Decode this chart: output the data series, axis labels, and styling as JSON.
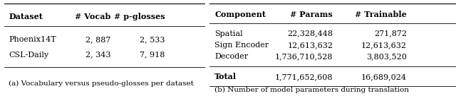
{
  "table_a": {
    "caption": "(a) Vocabulary versus pseudo-glosses per dataset",
    "headers": [
      "Dataset",
      "# Vocab",
      "# p-glosses"
    ],
    "rows": [
      [
        "Phoenix14T",
        "2, 887",
        "2, 533"
      ],
      [
        "CSL-Daily",
        "2, 343",
        "7, 918"
      ]
    ]
  },
  "table_b": {
    "caption": "(b) Number of model parameters during translation",
    "headers": [
      "Component",
      "# Params",
      "# Trainable"
    ],
    "rows": [
      [
        "Spatial",
        "22,328,448",
        "271,872"
      ],
      [
        "Sign Encoder",
        "12,613,632",
        "12,613,632"
      ],
      [
        "Decoder",
        "1,736,710,528",
        "3,803,520"
      ]
    ],
    "total_row": [
      "Total",
      "1,771,652,608",
      "16,689,024"
    ]
  },
  "background_color": "#ffffff",
  "text_color": "#000000",
  "font_size": 8.0,
  "caption_font_size": 7.5
}
